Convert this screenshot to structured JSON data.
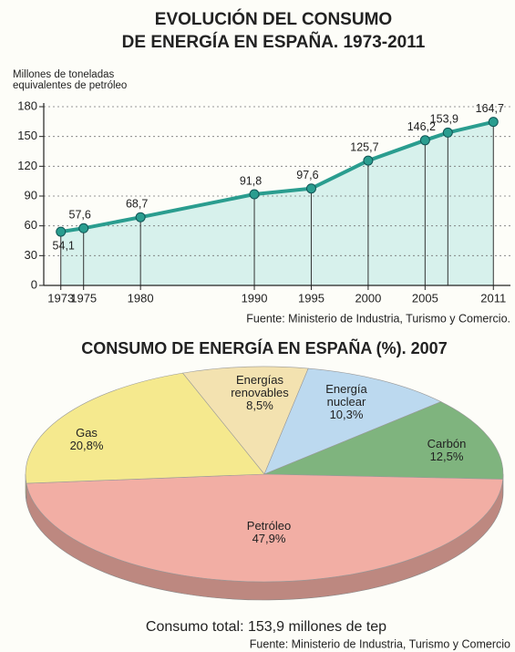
{
  "chart_data": [
    {
      "type": "line",
      "title": [
        "EVOLUCIÓN DEL CONSUMO",
        "DE ENERGÍA EN ESPAÑA. 1973-2011"
      ],
      "y_label": [
        "Millones de toneladas",
        "equivalentes de petróleo"
      ],
      "x": [
        1973,
        1975,
        1980,
        1990,
        1995,
        2000,
        2005,
        2007,
        2011
      ],
      "values": [
        54.1,
        57.6,
        68.7,
        91.8,
        97.6,
        125.7,
        146.2,
        153.9,
        164.7
      ],
      "value_labels": [
        "54,1",
        "57,6",
        "68,7",
        "91,8",
        "97,6",
        "125,7",
        "146,2",
        "153,9",
        "164,7"
      ],
      "xticks": [
        1973,
        1975,
        1980,
        1990,
        1995,
        2000,
        2005,
        2011
      ],
      "xlim": [
        1971.5,
        2012.5
      ],
      "ylim": [
        0,
        180
      ],
      "yticks": [
        0,
        30,
        60,
        90,
        120,
        150,
        180
      ],
      "grid": true,
      "color": "#2a9d8f",
      "source": "Fuente: Ministerio de Industria, Turismo y Comercio."
    },
    {
      "type": "pie",
      "title": "CONSUMO DE ENERGÍA EN ESPAÑA (%). 2007",
      "categories": [
        "Energías renovables",
        "Energía nuclear",
        "Carbón",
        "Petróleo",
        "Gas"
      ],
      "values": [
        8.5,
        10.3,
        12.5,
        47.9,
        20.8
      ],
      "value_labels": [
        "8,5%",
        "10,3%",
        "12,5%",
        "47,9%",
        "20,8%"
      ],
      "colors": [
        "#f3e2b0",
        "#bcd9ef",
        "#7fb47e",
        "#f2aea4",
        "#f5e98e"
      ],
      "annotation": "Consumo total: 153,9 millones de tep",
      "source": "Fuente: Ministerio de Industria, Turismo y Comercio"
    }
  ]
}
